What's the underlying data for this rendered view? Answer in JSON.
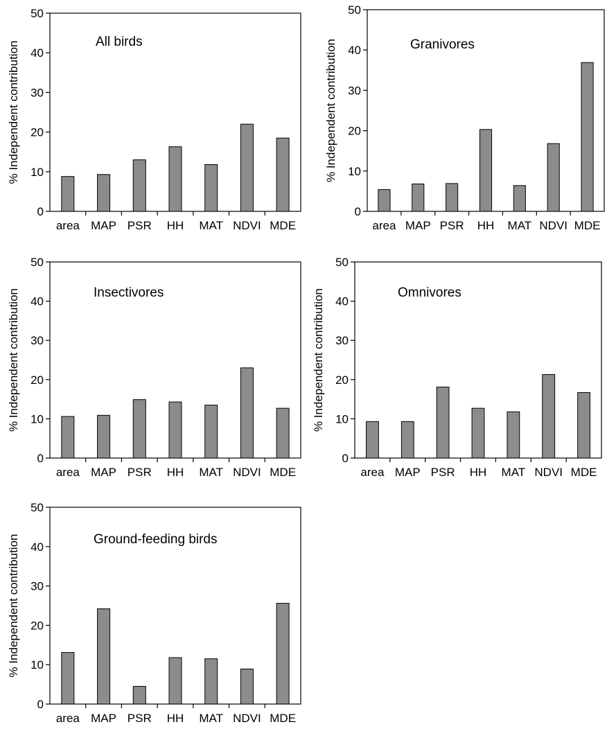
{
  "chart_data": [
    {
      "type": "bar",
      "title": "All birds",
      "ylabel": "% Independent contribution",
      "ylim": [
        0,
        50
      ],
      "yticks": [
        "0",
        "10",
        "20",
        "30",
        "40",
        "50"
      ],
      "categories": [
        "area",
        "MAP",
        "PSR",
        "HH",
        "MAT",
        "NDVI",
        "MDE"
      ],
      "values": [
        8.8,
        9.3,
        13.0,
        16.3,
        11.8,
        22.0,
        18.5
      ],
      "colors": {
        "bar": "#8c8c8c"
      }
    },
    {
      "type": "bar",
      "title": "Granivores",
      "ylabel": "% Independent contribution",
      "ylim": [
        0,
        50
      ],
      "yticks": [
        "0",
        "10",
        "20",
        "30",
        "40",
        "50"
      ],
      "categories": [
        "area",
        "MAP",
        "PSR",
        "HH",
        "MAT",
        "NDVI",
        "MDE"
      ],
      "values": [
        5.4,
        6.8,
        6.9,
        20.3,
        6.4,
        16.8,
        36.9
      ],
      "colors": {
        "bar": "#8c8c8c"
      }
    },
    {
      "type": "bar",
      "title": "Insectivores",
      "ylabel": "% Independent contribution",
      "ylim": [
        0,
        50
      ],
      "yticks": [
        "0",
        "10",
        "20",
        "30",
        "40",
        "50"
      ],
      "categories": [
        "area",
        "MAP",
        "PSR",
        "HH",
        "MAT",
        "NDVI",
        "MDE"
      ],
      "values": [
        10.6,
        10.9,
        14.9,
        14.3,
        13.5,
        23.0,
        12.7
      ],
      "colors": {
        "bar": "#8c8c8c"
      }
    },
    {
      "type": "bar",
      "title": "Omnivores",
      "ylabel": "% Independent contribution",
      "ylim": [
        0,
        50
      ],
      "yticks": [
        "0",
        "10",
        "20",
        "30",
        "40",
        "50"
      ],
      "categories": [
        "area",
        "MAP",
        "PSR",
        "HH",
        "MAT",
        "NDVI",
        "MDE"
      ],
      "values": [
        9.3,
        9.3,
        18.1,
        12.7,
        11.8,
        21.3,
        16.7
      ],
      "colors": {
        "bar": "#8c8c8c"
      }
    },
    {
      "type": "bar",
      "title": "Ground-feeding birds",
      "ylabel": "% Independent contribution",
      "ylim": [
        0,
        50
      ],
      "yticks": [
        "0",
        "10",
        "20",
        "30",
        "40",
        "50"
      ],
      "categories": [
        "area",
        "MAP",
        "PSR",
        "HH",
        "MAT",
        "NDVI",
        "MDE"
      ],
      "values": [
        13.1,
        24.2,
        4.5,
        11.8,
        11.5,
        8.9,
        25.6
      ],
      "colors": {
        "bar": "#8c8c8c"
      }
    }
  ]
}
